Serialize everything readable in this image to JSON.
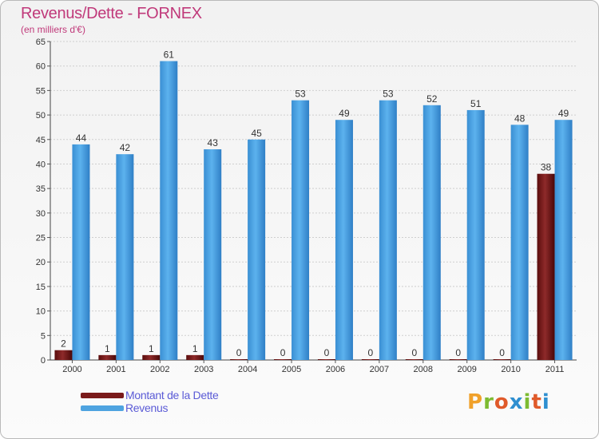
{
  "title": "Revenus/Dette - FORNEX",
  "subtitle": "(en milliers d'€)",
  "chart_data": {
    "type": "bar",
    "categories": [
      "2000",
      "2001",
      "2002",
      "2003",
      "2004",
      "2005",
      "2006",
      "2007",
      "2008",
      "2009",
      "2010",
      "2011"
    ],
    "series": [
      {
        "name": "Montant de la Dette",
        "values": [
          2,
          1,
          1,
          1,
          0,
          0,
          0,
          0,
          0,
          0,
          0,
          38
        ],
        "color": "#7a1a1a"
      },
      {
        "name": "Revenus",
        "values": [
          44,
          42,
          61,
          43,
          45,
          53,
          49,
          53,
          52,
          51,
          48,
          49
        ],
        "color": "#4ea3e0"
      }
    ],
    "ylim": [
      0,
      65
    ],
    "yticks": [
      0,
      5,
      10,
      15,
      20,
      25,
      30,
      35,
      40,
      45,
      50,
      55,
      60,
      65
    ],
    "grid": true,
    "legend": "bottom-left"
  },
  "logo": {
    "chars": [
      "P",
      "r",
      "o",
      "x",
      "i",
      "t",
      "i"
    ]
  }
}
